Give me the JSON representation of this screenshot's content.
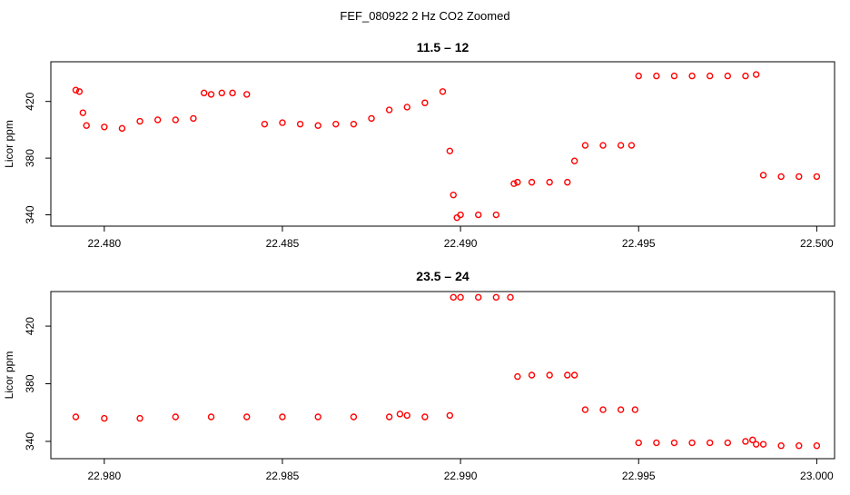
{
  "figure_title": "FEF_080922  2 Hz CO2 Zoomed",
  "chart_data": [
    {
      "type": "scatter",
      "title": "11.5 – 12",
      "xlabel": "",
      "ylabel": "Licor ppm",
      "xlim": [
        22.4785,
        22.5005
      ],
      "ylim": [
        332,
        448
      ],
      "x_ticks": [
        22.48,
        22.485,
        22.49,
        22.495,
        22.5
      ],
      "x_tick_labels": [
        "22.480",
        "22.485",
        "22.490",
        "22.495",
        "22.500"
      ],
      "y_ticks": [
        340,
        380,
        420
      ],
      "y_tick_labels": [
        "340",
        "380",
        "420"
      ],
      "grid": false,
      "legend": "none",
      "marker": "open-circle",
      "color": "#ff0000",
      "series": [
        {
          "x": [
            22.4792,
            22.4793,
            22.4794,
            22.4795,
            22.48,
            22.4805,
            22.481,
            22.4815,
            22.482,
            22.4825,
            22.4828,
            22.483,
            22.4833,
            22.4836,
            22.484,
            22.4845,
            22.485,
            22.4855,
            22.486,
            22.4865,
            22.487,
            22.4875,
            22.488,
            22.4885,
            22.489,
            22.4895,
            22.4897,
            22.4898,
            22.4899,
            22.49,
            22.4905,
            22.491,
            22.4915,
            22.4916,
            22.492,
            22.4925,
            22.493,
            22.4932,
            22.4935,
            22.494,
            22.4945,
            22.4948,
            22.495,
            22.4955,
            22.496,
            22.4965,
            22.497,
            22.4975,
            22.498,
            22.4983,
            22.4985,
            22.499,
            22.4995,
            22.5
          ],
          "y": [
            428,
            427,
            412,
            403,
            402,
            401,
            406,
            407,
            407,
            408,
            426,
            425,
            426,
            426,
            425,
            404,
            405,
            404,
            403,
            404,
            404,
            408,
            414,
            416,
            419,
            427,
            385,
            354,
            338,
            340,
            340,
            340,
            362,
            363,
            363,
            363,
            363,
            378,
            389,
            389,
            389,
            389,
            438,
            438,
            438,
            438,
            438,
            438,
            438,
            439,
            368,
            367,
            367,
            367
          ]
        }
      ]
    },
    {
      "type": "scatter",
      "title": "23.5 – 24",
      "xlabel": "",
      "ylabel": "Licor ppm",
      "xlim": [
        22.9785,
        23.0005
      ],
      "ylim": [
        328,
        444
      ],
      "x_ticks": [
        22.98,
        22.985,
        22.99,
        22.995,
        23.0
      ],
      "x_tick_labels": [
        "22.980",
        "22.985",
        "22.990",
        "22.995",
        "23.000"
      ],
      "y_ticks": [
        340,
        380,
        420
      ],
      "y_tick_labels": [
        "340",
        "380",
        "420"
      ],
      "grid": false,
      "legend": "none",
      "marker": "open-circle",
      "color": "#ff0000",
      "series": [
        {
          "x": [
            22.9792,
            22.98,
            22.981,
            22.982,
            22.983,
            22.984,
            22.985,
            22.986,
            22.987,
            22.988,
            22.9883,
            22.9885,
            22.989,
            22.9897,
            22.9898,
            22.99,
            22.9905,
            22.991,
            22.9914,
            22.9916,
            22.992,
            22.9925,
            22.993,
            22.9932,
            22.9935,
            22.994,
            22.9945,
            22.9949,
            22.995,
            22.9955,
            22.996,
            22.9965,
            22.997,
            22.9975,
            22.998,
            22.9982,
            22.9983,
            22.9985,
            22.999,
            22.9995,
            23.0
          ],
          "y": [
            357,
            356,
            356,
            357,
            357,
            357,
            357,
            357,
            357,
            357,
            359,
            358,
            357,
            358,
            440,
            440,
            440,
            440,
            440,
            385,
            386,
            386,
            386,
            386,
            362,
            362,
            362,
            362,
            339,
            339,
            339,
            339,
            339,
            339,
            340,
            341,
            338,
            338,
            337,
            337,
            337
          ]
        }
      ]
    }
  ]
}
